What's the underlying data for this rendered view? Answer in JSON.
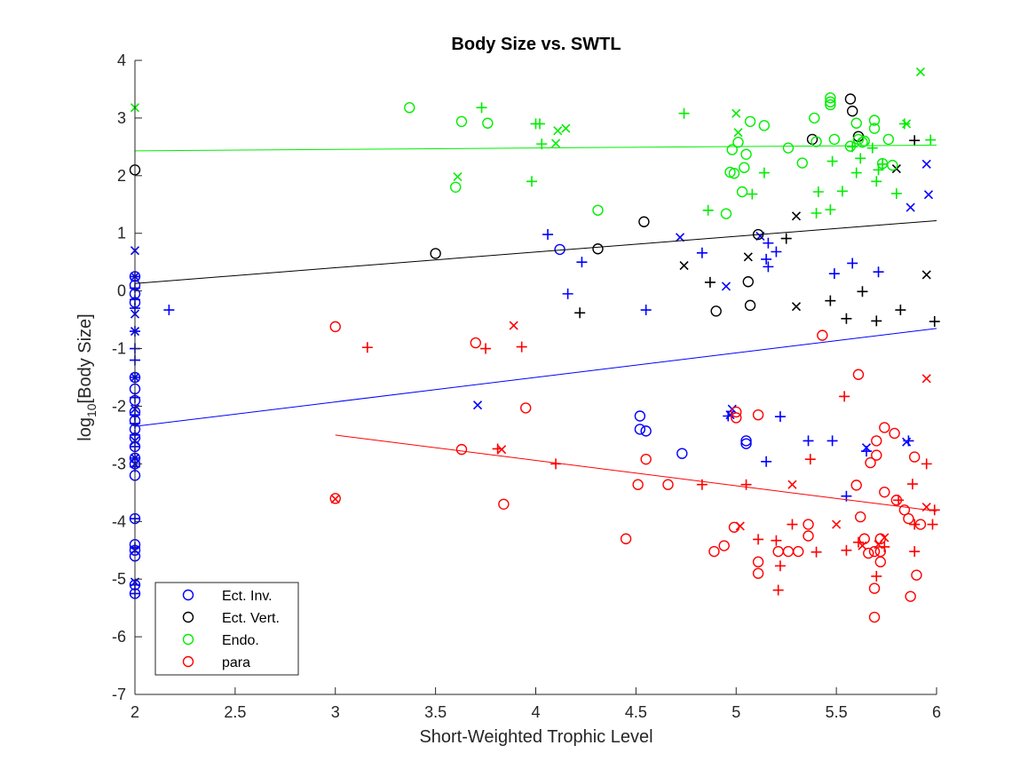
{
  "chart_data": {
    "type": "scatter",
    "title": "Body Size vs. SWTL",
    "xlabel": "Short-Weighted Trophic Level",
    "ylabel_main": "log",
    "ylabel_sub": "10",
    "ylabel_rest": "[Body Size]",
    "xlim": [
      2,
      6
    ],
    "ylim": [
      -7,
      4
    ],
    "xticks": [
      2,
      2.5,
      3,
      3.5,
      4,
      4.5,
      5,
      5.5,
      6
    ],
    "xtick_labels": [
      "2",
      "2.5",
      "3",
      "3.5",
      "4",
      "4.5",
      "5",
      "5.5",
      "6"
    ],
    "yticks": [
      -7,
      -6,
      -5,
      -4,
      -3,
      -2,
      -1,
      0,
      1,
      2,
      3,
      4
    ],
    "ytick_labels": [
      "-7",
      "-6",
      "-5",
      "-4",
      "-3",
      "-2",
      "-1",
      "0",
      "1",
      "2",
      "3",
      "4"
    ],
    "grid": false,
    "legend_position": "bottom-left",
    "legend": [
      "Ect. Inv.",
      "Ect. Vert.",
      "Endo.",
      "para"
    ],
    "series": [
      {
        "name": "Ect. Inv.",
        "color": "#0000ff",
        "fit": [
          [
            2,
            -2.35
          ],
          [
            6,
            -0.65
          ]
        ],
        "circles": [
          [
            2,
            0.25
          ],
          [
            2,
            0.1
          ],
          [
            2,
            -0.05
          ],
          [
            2,
            -0.2
          ],
          [
            2,
            -1.5
          ],
          [
            2,
            -1.7
          ],
          [
            2,
            -1.9
          ],
          [
            2,
            -2.1
          ],
          [
            2,
            -2.25
          ],
          [
            2,
            -2.4
          ],
          [
            2,
            -2.55
          ],
          [
            2,
            -2.7
          ],
          [
            2,
            -2.9
          ],
          [
            2,
            -3.0
          ],
          [
            2,
            -3.2
          ],
          [
            2,
            -3.95
          ],
          [
            2,
            -4.4
          ],
          [
            2,
            -4.5
          ],
          [
            2,
            -4.6
          ],
          [
            2,
            -5.1
          ],
          [
            2,
            -5.25
          ],
          [
            4.12,
            0.72
          ],
          [
            4.52,
            -2.17
          ],
          [
            4.52,
            -2.4
          ],
          [
            4.55,
            -2.43
          ],
          [
            4.73,
            -2.82
          ],
          [
            5.05,
            -2.6
          ],
          [
            5.05,
            -2.65
          ]
        ],
        "crosses": [
          [
            2,
            0.7
          ],
          [
            2,
            0.25
          ],
          [
            2,
            -0.4
          ],
          [
            2,
            -0.7
          ],
          [
            2,
            -1.5
          ],
          [
            2,
            -2.05
          ],
          [
            2,
            -2.6
          ],
          [
            2,
            -2.9
          ],
          [
            2,
            -3.0
          ],
          [
            2,
            -4.5
          ],
          [
            2,
            -5.05
          ],
          [
            3.71,
            -1.98
          ],
          [
            4.72,
            0.93
          ],
          [
            4.95,
            0.08
          ],
          [
            4.97,
            -2.15
          ],
          [
            4.98,
            -2.05
          ],
          [
            5.12,
            0.95
          ],
          [
            5.65,
            -2.72
          ],
          [
            5.85,
            -2.62
          ],
          [
            5.87,
            1.45
          ],
          [
            5.95,
            2.2
          ],
          [
            5.96,
            1.67
          ]
        ],
        "pluses": [
          [
            2,
            0.25
          ],
          [
            2,
            0.05
          ],
          [
            2,
            -0.15
          ],
          [
            2,
            -0.3
          ],
          [
            2,
            -0.7
          ],
          [
            2,
            -1.0
          ],
          [
            2,
            -1.2
          ],
          [
            2,
            -1.5
          ],
          [
            2,
            -1.85
          ],
          [
            2,
            -2.15
          ],
          [
            2,
            -2.3
          ],
          [
            2,
            -2.5
          ],
          [
            2,
            -2.7
          ],
          [
            2,
            -2.9
          ],
          [
            2,
            -3.05
          ],
          [
            2,
            -3.95
          ],
          [
            2,
            -4.45
          ],
          [
            2,
            -5.1
          ],
          [
            2,
            -5.25
          ],
          [
            2.17,
            -0.33
          ],
          [
            4.06,
            0.98
          ],
          [
            4.16,
            -0.05
          ],
          [
            4.23,
            0.5
          ],
          [
            4.55,
            -0.33
          ],
          [
            4.83,
            0.66
          ],
          [
            4.96,
            -2.17
          ],
          [
            5.15,
            -2.96
          ],
          [
            5.15,
            0.55
          ],
          [
            5.16,
            0.42
          ],
          [
            5.16,
            0.83
          ],
          [
            5.2,
            0.68
          ],
          [
            5.22,
            -2.18
          ],
          [
            5.36,
            -2.6
          ],
          [
            5.48,
            -2.6
          ],
          [
            5.49,
            0.3
          ],
          [
            5.55,
            -3.56
          ],
          [
            5.58,
            0.48
          ],
          [
            5.65,
            -2.78
          ],
          [
            5.71,
            0.33
          ],
          [
            5.86,
            -2.6
          ]
        ]
      },
      {
        "name": "Ect. Vert.",
        "color": "#000000",
        "fit": [
          [
            2,
            0.13
          ],
          [
            6,
            1.22
          ]
        ],
        "circles": [
          [
            2,
            2.1
          ],
          [
            3.5,
            0.65
          ],
          [
            4.31,
            0.73
          ],
          [
            4.54,
            1.2
          ],
          [
            4.9,
            -0.35
          ],
          [
            5.07,
            -0.25
          ],
          [
            5.06,
            0.16
          ],
          [
            5.11,
            0.98
          ],
          [
            5.38,
            2.63
          ],
          [
            5.57,
            3.33
          ],
          [
            5.58,
            3.12
          ],
          [
            5.61,
            2.68
          ]
        ],
        "crosses": [
          [
            4.74,
            0.44
          ],
          [
            5.06,
            0.59
          ],
          [
            5.3,
            1.3
          ],
          [
            5.3,
            -0.27
          ],
          [
            5.8,
            2.12
          ],
          [
            5.95,
            0.28
          ]
        ],
        "pluses": [
          [
            4.22,
            -0.38
          ],
          [
            4.87,
            0.15
          ],
          [
            5.25,
            0.91
          ],
          [
            5.47,
            -0.17
          ],
          [
            5.55,
            -0.48
          ],
          [
            5.63,
            -0.01
          ],
          [
            5.7,
            -0.52
          ],
          [
            5.82,
            -0.33
          ],
          [
            5.89,
            2.61
          ],
          [
            5.99,
            -0.53
          ]
        ]
      },
      {
        "name": "Endo.",
        "color": "#00ee00",
        "fit": [
          [
            2,
            2.43
          ],
          [
            6,
            2.53
          ]
        ],
        "circles": [
          [
            3.37,
            3.18
          ],
          [
            3.6,
            1.8
          ],
          [
            3.63,
            2.94
          ],
          [
            3.76,
            2.91
          ],
          [
            4.31,
            1.4
          ],
          [
            4.95,
            1.34
          ],
          [
            4.97,
            2.06
          ],
          [
            4.98,
            2.45
          ],
          [
            4.99,
            2.04
          ],
          [
            5.01,
            2.58
          ],
          [
            5.03,
            1.72
          ],
          [
            5.04,
            2.14
          ],
          [
            5.05,
            2.37
          ],
          [
            5.07,
            2.94
          ],
          [
            5.14,
            2.87
          ],
          [
            5.26,
            2.48
          ],
          [
            5.33,
            2.22
          ],
          [
            5.39,
            3.0
          ],
          [
            5.4,
            2.59
          ],
          [
            5.47,
            3.35
          ],
          [
            5.47,
            3.28
          ],
          [
            5.47,
            3.23
          ],
          [
            5.49,
            2.63
          ],
          [
            5.57,
            2.51
          ],
          [
            5.6,
            2.91
          ],
          [
            5.61,
            2.63
          ],
          [
            5.63,
            2.58
          ],
          [
            5.64,
            2.6
          ],
          [
            5.69,
            2.96
          ],
          [
            5.69,
            2.82
          ],
          [
            5.73,
            2.21
          ],
          [
            5.76,
            2.63
          ],
          [
            5.78,
            2.18
          ]
        ],
        "crosses": [
          [
            2,
            3.18
          ],
          [
            3.61,
            1.98
          ],
          [
            4.1,
            2.56
          ],
          [
            4.11,
            2.78
          ],
          [
            4.15,
            2.82
          ],
          [
            5.0,
            3.08
          ],
          [
            5.01,
            2.75
          ],
          [
            5.85,
            2.9
          ],
          [
            5.92,
            3.8
          ]
        ],
        "pluses": [
          [
            3.73,
            3.18
          ],
          [
            3.98,
            1.9
          ],
          [
            4.0,
            2.9
          ],
          [
            4.02,
            2.9
          ],
          [
            4.03,
            2.55
          ],
          [
            4.74,
            3.08
          ],
          [
            4.86,
            1.4
          ],
          [
            5.08,
            1.68
          ],
          [
            5.14,
            2.05
          ],
          [
            5.4,
            1.35
          ],
          [
            5.41,
            1.72
          ],
          [
            5.47,
            1.41
          ],
          [
            5.48,
            2.25
          ],
          [
            5.53,
            1.73
          ],
          [
            5.58,
            2.5
          ],
          [
            5.6,
            2.05
          ],
          [
            5.62,
            2.3
          ],
          [
            5.68,
            2.48
          ],
          [
            5.7,
            1.9
          ],
          [
            5.71,
            2.1
          ],
          [
            5.73,
            2.2
          ],
          [
            5.8,
            1.69
          ],
          [
            5.84,
            2.9
          ],
          [
            5.97,
            2.62
          ]
        ]
      },
      {
        "name": "para",
        "color": "#ff0000",
        "fit": [
          [
            3,
            -2.5
          ],
          [
            6,
            -3.82
          ]
        ],
        "circles": [
          [
            3.0,
            -3.6
          ],
          [
            3.0,
            -0.62
          ],
          [
            3.63,
            -2.75
          ],
          [
            3.7,
            -0.9
          ],
          [
            3.84,
            -3.7
          ],
          [
            3.95,
            -2.03
          ],
          [
            4.45,
            -4.3
          ],
          [
            4.51,
            -3.36
          ],
          [
            4.55,
            -2.92
          ],
          [
            4.66,
            -3.36
          ],
          [
            4.89,
            -4.52
          ],
          [
            4.94,
            -4.42
          ],
          [
            4.99,
            -4.1
          ],
          [
            5.0,
            -2.2
          ],
          [
            5.0,
            -2.1
          ],
          [
            5.11,
            -4.7
          ],
          [
            5.11,
            -4.9
          ],
          [
            5.11,
            -2.15
          ],
          [
            5.21,
            -4.52
          ],
          [
            5.26,
            -4.52
          ],
          [
            5.31,
            -4.52
          ],
          [
            5.36,
            -4.05
          ],
          [
            5.36,
            -4.25
          ],
          [
            5.43,
            -0.77
          ],
          [
            5.6,
            -3.37
          ],
          [
            5.61,
            -1.45
          ],
          [
            5.62,
            -3.92
          ],
          [
            5.64,
            -4.3
          ],
          [
            5.66,
            -4.55
          ],
          [
            5.67,
            -2.98
          ],
          [
            5.69,
            -5.66
          ],
          [
            5.69,
            -5.16
          ],
          [
            5.69,
            -4.52
          ],
          [
            5.7,
            -2.6
          ],
          [
            5.7,
            -2.85
          ],
          [
            5.72,
            -4.7
          ],
          [
            5.72,
            -4.52
          ],
          [
            5.72,
            -4.3
          ],
          [
            5.74,
            -2.37
          ],
          [
            5.74,
            -3.49
          ],
          [
            5.79,
            -2.47
          ],
          [
            5.8,
            -3.63
          ],
          [
            5.84,
            -3.8
          ],
          [
            5.86,
            -3.95
          ],
          [
            5.87,
            -5.3
          ],
          [
            5.89,
            -2.88
          ],
          [
            5.9,
            -4.93
          ],
          [
            5.92,
            -4.05
          ]
        ],
        "crosses": [
          [
            3.0,
            -3.61
          ],
          [
            3.83,
            -2.75
          ],
          [
            3.89,
            -0.6
          ],
          [
            5.02,
            -4.08
          ],
          [
            5.28,
            -3.36
          ],
          [
            5.5,
            -4.05
          ],
          [
            5.63,
            -4.42
          ],
          [
            5.74,
            -4.28
          ],
          [
            5.71,
            -4.4
          ],
          [
            5.95,
            -1.52
          ],
          [
            5.95,
            -3.75
          ]
        ],
        "pluses": [
          [
            3.16,
            -0.98
          ],
          [
            3.75,
            -1.0
          ],
          [
            3.81,
            -2.74
          ],
          [
            3.93,
            -0.97
          ],
          [
            4.1,
            -3.0
          ],
          [
            4.83,
            -3.36
          ],
          [
            5.05,
            -3.36
          ],
          [
            5.11,
            -4.31
          ],
          [
            5.2,
            -4.33
          ],
          [
            5.21,
            -5.19
          ],
          [
            5.22,
            -4.77
          ],
          [
            5.28,
            -4.05
          ],
          [
            5.37,
            -2.92
          ],
          [
            5.4,
            -4.53
          ],
          [
            5.54,
            -1.83
          ],
          [
            5.55,
            -4.5
          ],
          [
            5.61,
            -4.36
          ],
          [
            5.7,
            -4.95
          ],
          [
            5.74,
            -4.44
          ],
          [
            5.81,
            -3.63
          ],
          [
            5.88,
            -3.35
          ],
          [
            5.89,
            -4.52
          ],
          [
            5.89,
            -4.05
          ],
          [
            5.95,
            -3.0
          ],
          [
            5.98,
            -4.05
          ],
          [
            5.99,
            -3.8
          ]
        ]
      }
    ]
  }
}
